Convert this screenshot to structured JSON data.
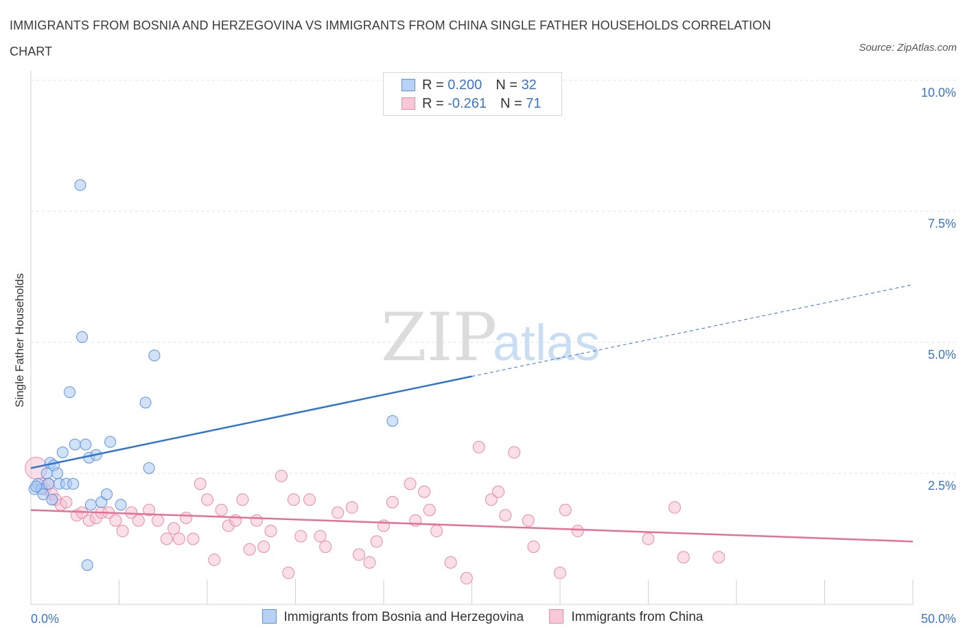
{
  "title": "IMMIGRANTS FROM BOSNIA AND HERZEGOVINA VS IMMIGRANTS FROM CHINA SINGLE FATHER HOUSEHOLDS CORRELATION CHART",
  "source": "Source: ZipAtlas.com",
  "watermark": {
    "zip": "ZIP",
    "atlas": "atlas"
  },
  "stats": [
    {
      "r_label": "R = ",
      "r_value": "0.200",
      "n_label": "N = ",
      "n_value": "32"
    },
    {
      "r_label": "R = ",
      "r_value": "-0.261",
      "n_label": "N = ",
      "n_value": "71"
    }
  ],
  "chart_data": {
    "type": "scatter",
    "xlabel": "",
    "ylabel": "Single Father Households",
    "xlim": [
      0,
      50
    ],
    "ylim": [
      0,
      10
    ],
    "x_tick_labels": [
      "0.0%",
      "50.0%"
    ],
    "y_ticks": [
      2.5,
      5.0,
      7.5,
      10.0
    ],
    "y_tick_labels": [
      "2.5%",
      "5.0%",
      "7.5%",
      "10.0%"
    ],
    "grid": "horizontal dashed",
    "legend_placement": "bottom-center",
    "colors": {
      "bosnia_fill": "#a9c8f3",
      "bosnia_stroke": "#5b92dd",
      "bosnia_line": "#2f74d0",
      "china_fill": "#f7bfd0",
      "china_stroke": "#e58aa7",
      "china_line": "#e56f95"
    },
    "series": [
      {
        "name": "Immigrants from Bosnia and Herzegovina",
        "points": [
          [
            0.2,
            2.2
          ],
          [
            0.4,
            2.3
          ],
          [
            0.6,
            2.2
          ],
          [
            0.7,
            2.1
          ],
          [
            0.9,
            2.5
          ],
          [
            1.0,
            2.3
          ],
          [
            1.1,
            2.7
          ],
          [
            1.2,
            2.0
          ],
          [
            1.3,
            2.65
          ],
          [
            1.5,
            2.5
          ],
          [
            1.6,
            2.3
          ],
          [
            1.8,
            2.9
          ],
          [
            2.0,
            2.3
          ],
          [
            2.2,
            4.05
          ],
          [
            2.4,
            2.3
          ],
          [
            2.5,
            3.05
          ],
          [
            2.8,
            8.0
          ],
          [
            2.9,
            5.1
          ],
          [
            3.1,
            3.05
          ],
          [
            3.2,
            0.75
          ],
          [
            3.3,
            2.8
          ],
          [
            3.4,
            1.9
          ],
          [
            3.7,
            2.85
          ],
          [
            4.0,
            1.95
          ],
          [
            4.3,
            2.1
          ],
          [
            4.5,
            3.1
          ],
          [
            5.1,
            1.9
          ],
          [
            6.5,
            3.85
          ],
          [
            6.7,
            2.6
          ],
          [
            7.0,
            4.75
          ],
          [
            20.5,
            3.5
          ],
          [
            0.3,
            2.25
          ]
        ],
        "trend": {
          "x": [
            0,
            25,
            50
          ],
          "y": [
            2.6,
            4.35,
            6.1
          ],
          "solid_until_x": 25
        }
      },
      {
        "name": "Immigrants from China",
        "points": [
          [
            0.3,
            2.6
          ],
          [
            0.6,
            2.3
          ],
          [
            0.8,
            2.2
          ],
          [
            1.0,
            2.3
          ],
          [
            1.2,
            2.1
          ],
          [
            1.4,
            2.0
          ],
          [
            1.7,
            1.9
          ],
          [
            2.0,
            1.95
          ],
          [
            2.6,
            1.7
          ],
          [
            2.9,
            1.75
          ],
          [
            3.3,
            1.6
          ],
          [
            3.7,
            1.65
          ],
          [
            4.0,
            1.75
          ],
          [
            4.4,
            1.75
          ],
          [
            4.8,
            1.6
          ],
          [
            5.2,
            1.4
          ],
          [
            5.7,
            1.75
          ],
          [
            6.1,
            1.6
          ],
          [
            6.7,
            1.8
          ],
          [
            7.2,
            1.6
          ],
          [
            7.7,
            1.25
          ],
          [
            8.1,
            1.45
          ],
          [
            8.4,
            1.25
          ],
          [
            8.8,
            1.65
          ],
          [
            9.2,
            1.25
          ],
          [
            9.6,
            2.3
          ],
          [
            10.0,
            2.0
          ],
          [
            10.4,
            0.85
          ],
          [
            10.8,
            1.8
          ],
          [
            11.2,
            1.5
          ],
          [
            11.6,
            1.6
          ],
          [
            12.0,
            2.0
          ],
          [
            12.4,
            1.05
          ],
          [
            12.8,
            1.6
          ],
          [
            13.2,
            1.1
          ],
          [
            13.6,
            1.4
          ],
          [
            14.2,
            2.45
          ],
          [
            14.6,
            0.6
          ],
          [
            14.9,
            2.0
          ],
          [
            15.3,
            1.3
          ],
          [
            15.8,
            2.0
          ],
          [
            16.4,
            1.3
          ],
          [
            16.7,
            1.1
          ],
          [
            17.4,
            1.75
          ],
          [
            18.2,
            1.85
          ],
          [
            18.6,
            0.95
          ],
          [
            19.2,
            0.8
          ],
          [
            19.6,
            1.2
          ],
          [
            20.0,
            1.5
          ],
          [
            20.5,
            1.95
          ],
          [
            21.5,
            2.3
          ],
          [
            21.8,
            1.6
          ],
          [
            22.3,
            2.15
          ],
          [
            22.6,
            1.8
          ],
          [
            23.0,
            1.4
          ],
          [
            23.8,
            0.8
          ],
          [
            24.7,
            0.5
          ],
          [
            25.4,
            3.0
          ],
          [
            26.1,
            2.0
          ],
          [
            26.5,
            2.15
          ],
          [
            26.9,
            1.7
          ],
          [
            27.4,
            2.9
          ],
          [
            28.2,
            1.6
          ],
          [
            28.5,
            1.1
          ],
          [
            30.0,
            0.6
          ],
          [
            30.3,
            1.8
          ],
          [
            31.0,
            1.4
          ],
          [
            35.0,
            1.25
          ],
          [
            36.5,
            1.85
          ],
          [
            37.0,
            0.9
          ],
          [
            39.0,
            0.9
          ]
        ],
        "trend": {
          "x": [
            0,
            50
          ],
          "y": [
            1.8,
            1.2
          ]
        }
      }
    ]
  },
  "legend": [
    {
      "label": "Immigrants from Bosnia and Herzegovina"
    },
    {
      "label": "Immigrants from China"
    }
  ]
}
